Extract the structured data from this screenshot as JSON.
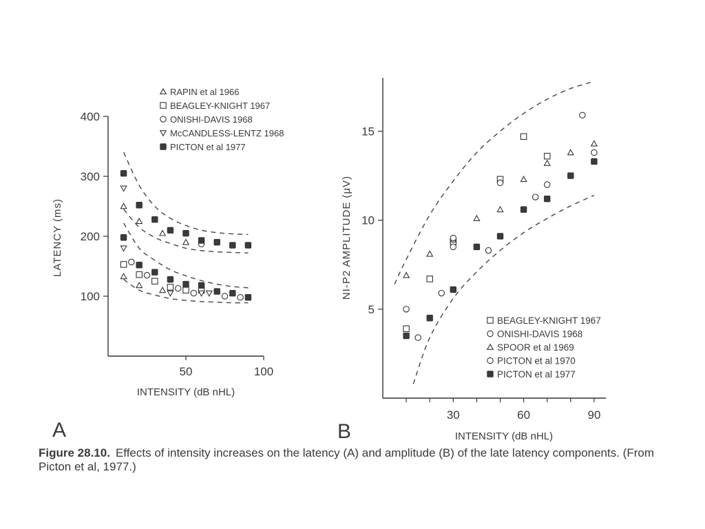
{
  "chart_data": [
    {
      "panel_label": "A",
      "type": "scatter",
      "xlabel": "INTENSITY (dB nHL)",
      "ylabel": "LATENCY (ms)",
      "xlim": [
        0,
        100
      ],
      "ylim": [
        0,
        400
      ],
      "xticks": [
        "50",
        "100"
      ],
      "yticks": [
        "100",
        "200",
        "300",
        "400"
      ],
      "legend_position": "top",
      "series": [
        {
          "name": "RAPIN et al 1966",
          "marker": "triangle-up",
          "x": [
            10,
            20,
            35,
            50,
            10,
            20,
            35
          ],
          "y": [
            250,
            225,
            205,
            190,
            133,
            118,
            110
          ]
        },
        {
          "name": "BEAGLEY-KNIGHT 1967",
          "marker": "square",
          "x": [
            10,
            20,
            30,
            40,
            50,
            60
          ],
          "y": [
            153,
            136,
            125,
            115,
            110,
            110
          ]
        },
        {
          "name": "ONISHI-DAVIS 1968",
          "marker": "circle",
          "x": [
            15,
            25,
            45,
            55,
            60,
            75,
            85
          ],
          "y": [
            157,
            135,
            113,
            105,
            187,
            100,
            98
          ]
        },
        {
          "name": "McCANDLESS-LENTZ 1968",
          "marker": "triangle-down",
          "x": [
            10,
            10,
            40,
            60,
            65
          ],
          "y": [
            280,
            180,
            105,
            105,
            105
          ]
        },
        {
          "name": "PICTON et al 1977",
          "marker": "filled-square",
          "x": [
            10,
            20,
            30,
            40,
            50,
            60,
            70,
            80,
            90,
            10,
            20,
            30,
            40,
            50,
            60,
            70,
            80,
            90
          ],
          "y": [
            305,
            252,
            228,
            210,
            205,
            193,
            190,
            185,
            185,
            198,
            152,
            140,
            128,
            120,
            118,
            108,
            105,
            98
          ]
        }
      ],
      "bounds": [
        {
          "x": [
            10,
            20,
            30,
            40,
            50,
            60,
            70,
            80,
            90
          ],
          "y": [
            340,
            285,
            250,
            230,
            218,
            210,
            206,
            204,
            203
          ]
        },
        {
          "x": [
            10,
            20,
            30,
            40,
            50,
            60,
            70,
            80,
            90
          ],
          "y": [
            245,
            215,
            198,
            188,
            180,
            176,
            174,
            173,
            172
          ]
        },
        {
          "x": [
            10,
            20,
            30,
            40,
            50,
            60,
            70,
            80,
            90
          ],
          "y": [
            222,
            180,
            160,
            144,
            134,
            126,
            120,
            116,
            114
          ]
        },
        {
          "x": [
            10,
            20,
            30,
            40,
            50,
            60,
            70,
            80,
            90
          ],
          "y": [
            128,
            110,
            102,
            96,
            93,
            91,
            90,
            89,
            89
          ]
        }
      ]
    },
    {
      "panel_label": "B",
      "type": "scatter",
      "xlabel": "INTENSITY (dB nHL)",
      "ylabel": "NI-P2 AMPLITUDE (μV)",
      "xlim": [
        0,
        95
      ],
      "ylim": [
        0,
        18
      ],
      "xticks": [
        "30",
        "60",
        "90"
      ],
      "yticks": [
        "5",
        "10",
        "15"
      ],
      "legend_position": "bottom-right",
      "series": [
        {
          "name": "BEAGLEY-KNIGHT 1967",
          "marker": "square",
          "x": [
            10,
            20,
            30,
            50,
            60,
            70
          ],
          "y": [
            3.9,
            6.7,
            8.8,
            12.3,
            14.7,
            13.6
          ]
        },
        {
          "name": "ONISHI-DAVIS 1968",
          "marker": "circle",
          "x": [
            10,
            15,
            25,
            30,
            45,
            65,
            85
          ],
          "y": [
            5.0,
            3.4,
            5.9,
            8.5,
            8.3,
            11.3,
            15.9
          ]
        },
        {
          "name": "SPOOR et al 1969",
          "marker": "triangle-up",
          "x": [
            10,
            20,
            30,
            40,
            50,
            60,
            70,
            80,
            90
          ],
          "y": [
            6.9,
            8.1,
            8.9,
            10.1,
            10.6,
            12.3,
            13.2,
            13.8,
            14.3
          ]
        },
        {
          "name": "PICTON et al 1970",
          "marker": "circle",
          "x": [
            30,
            50,
            70,
            90
          ],
          "y": [
            9.0,
            12.1,
            12.0,
            13.8
          ]
        },
        {
          "name": "PICTON et al 1977",
          "marker": "filled-square",
          "x": [
            10,
            20,
            30,
            40,
            50,
            60,
            70,
            80,
            90
          ],
          "y": [
            3.5,
            4.5,
            6.1,
            8.5,
            9.1,
            10.6,
            11.2,
            12.5,
            13.3
          ]
        }
      ],
      "bounds": [
        {
          "x": [
            5,
            10,
            20,
            30,
            40,
            50,
            60,
            70,
            80,
            90
          ],
          "y": [
            6.4,
            7.8,
            10.3,
            12.2,
            13.8,
            15.0,
            16.0,
            16.8,
            17.4,
            17.8
          ]
        },
        {
          "x": [
            13,
            20,
            30,
            40,
            50,
            60,
            70,
            80,
            90
          ],
          "y": [
            0.8,
            3.4,
            5.6,
            7.1,
            8.3,
            9.3,
            10.1,
            10.8,
            11.4
          ]
        }
      ]
    }
  ],
  "figure_caption": {
    "label": "Figure 28.10.",
    "text": "Effects of intensity increases on the latency (A) and amplitude (B) of the late latency components. (From Picton et al, 1977.)"
  }
}
